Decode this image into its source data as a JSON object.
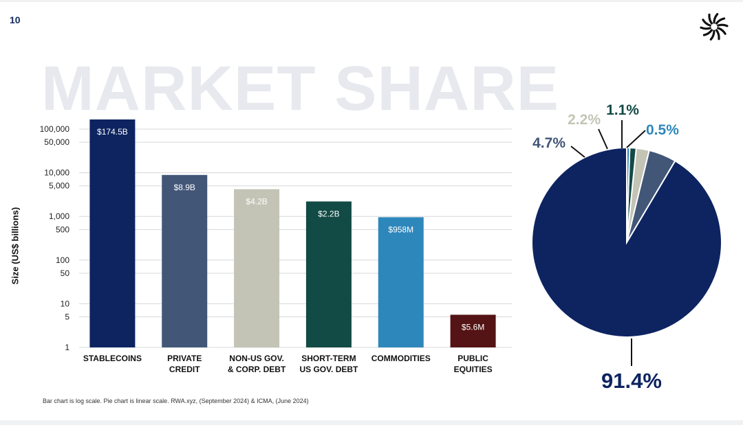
{
  "page": {
    "number": "10",
    "watermark": "MARKET SHARE",
    "footnote": "Bar chart is log scale. Pie chart is linear scale. RWA.xyz, (September 2024) & ICMA, (June 2024)"
  },
  "logo": {
    "icon": "starburst-logo-icon"
  },
  "chart_data": [
    {
      "type": "bar",
      "scale": "log",
      "ylabel": "Size (US$ billions)",
      "xlabel": "",
      "ylim": [
        1,
        100000
      ],
      "yticks": [
        1,
        5,
        10,
        50,
        100,
        500,
        1000,
        5000,
        10000,
        50000,
        100000
      ],
      "ytick_labels": [
        "1",
        "5",
        "10",
        "50",
        "100",
        "500",
        "1,000",
        "5,000",
        "10,000",
        "50,000",
        "100,000"
      ],
      "grid": true,
      "categories": [
        [
          "STABLECOINS"
        ],
        [
          "PRIVATE",
          "CREDIT"
        ],
        [
          "NON-US GOV.",
          "& CORP. DEBT"
        ],
        [
          "SHORT-TERM",
          "US GOV. DEBT"
        ],
        [
          "COMMODITIES"
        ],
        [
          "PUBLIC",
          "EQUITIES"
        ]
      ],
      "values": [
        174500,
        8900,
        4200,
        2200,
        958,
        5.6
      ],
      "value_labels": [
        "$174.5B",
        "$8.9B",
        "$4.2B",
        "$2.2B",
        "$958M",
        "$5.6M"
      ],
      "colors": [
        "#0d2461",
        "#425678",
        "#c3c4b5",
        "#124a45",
        "#2e87bb",
        "#541314"
      ]
    },
    {
      "type": "pie",
      "values": [
        91.4,
        4.7,
        2.2,
        1.1,
        0.5
      ],
      "labels": [
        "91.4%",
        "4.7%",
        "2.2%",
        "1.1%",
        "0.5%"
      ],
      "colors": [
        "#0d2461",
        "#425678",
        "#c3c4b5",
        "#124a45",
        "#2e87bb"
      ]
    }
  ]
}
